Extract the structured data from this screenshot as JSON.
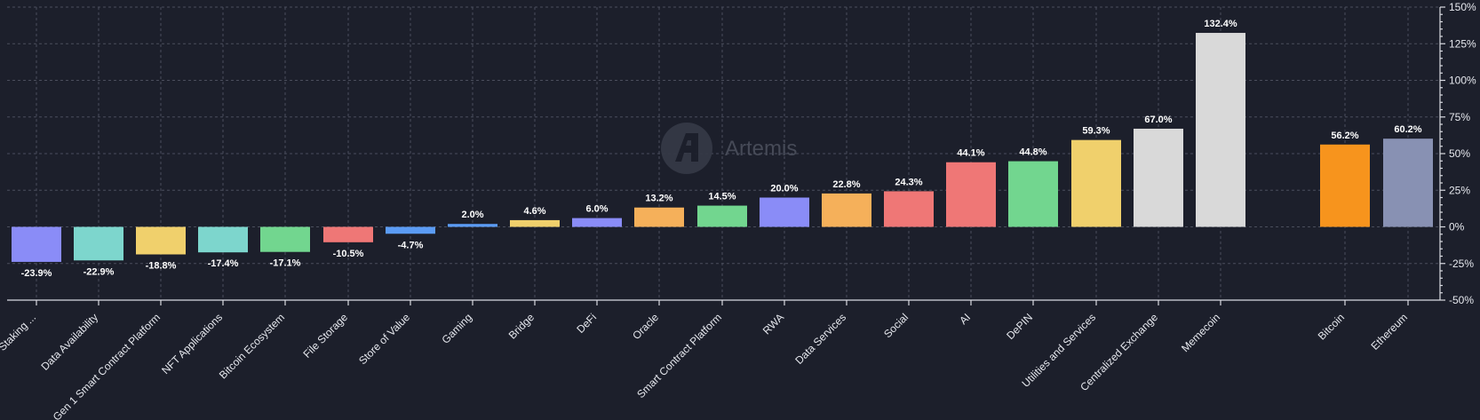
{
  "watermark": {
    "text": "Artemis"
  },
  "chart_data": {
    "type": "bar",
    "title": "",
    "xlabel": "",
    "ylabel": "",
    "ylim": [
      -50,
      150
    ],
    "y_ticks": [
      -50,
      -25,
      0,
      25,
      50,
      75,
      100,
      125,
      150
    ],
    "y_tick_format": "%",
    "grid": true,
    "value_label_format": "%.1f%",
    "categories": [
      "Staking ...",
      "Data Availability",
      "Gen 1 Smart Contract Platform",
      "NFT Applications",
      "Bitcoin Ecosystem",
      "File Storage",
      "Store of Value",
      "Gaming",
      "Bridge",
      "DeFi",
      "Oracle",
      "Smart Contract Platform",
      "RWA",
      "Data Services",
      "Social",
      "AI",
      "DePIN",
      "Utilities and Services",
      "Centralized Exchange",
      "Memecoin",
      "Bitcoin",
      "Ethereum"
    ],
    "values": [
      -23.9,
      -22.9,
      -18.8,
      -17.4,
      -17.1,
      -10.5,
      -4.7,
      2.0,
      4.6,
      6.0,
      13.2,
      14.5,
      20.0,
      22.8,
      24.3,
      44.1,
      44.8,
      59.3,
      67.0,
      132.4,
      56.2,
      60.2
    ],
    "colors": [
      "#8a8cf7",
      "#7dd6cd",
      "#f0d06c",
      "#7dd6cd",
      "#72d68f",
      "#ef7776",
      "#5b9cf5",
      "#5b9cf5",
      "#f0d06c",
      "#8a8cf7",
      "#f5b05a",
      "#72d68f",
      "#8a8cf7",
      "#f5b05a",
      "#ef7776",
      "#ef7776",
      "#72d68f",
      "#f0d06c",
      "#d9d9d9",
      "#d9d9d9",
      "#f7941d",
      "#8891b3"
    ]
  }
}
